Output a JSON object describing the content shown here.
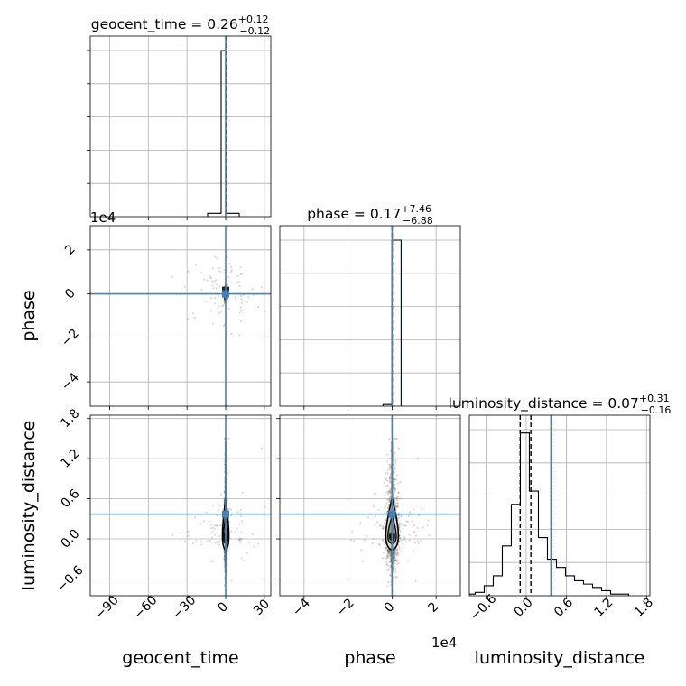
{
  "chart_data": {
    "type": "corner",
    "parameters": [
      "geocent_time",
      "phase",
      "luminosity_distance"
    ],
    "truth": {
      "geocent_time": 0,
      "phase": 0,
      "luminosity_distance": 0.37
    },
    "truth_color": "#4682b4",
    "grid": true,
    "diagonal_titles": [
      {
        "name": "geocent_time",
        "median": "0.26",
        "plus": "+0.12",
        "minus": "−0.12"
      },
      {
        "name": "phase",
        "median": "0.17",
        "plus": "+7.46",
        "minus": "−6.88"
      },
      {
        "name": "luminosity_distance",
        "median": "0.07",
        "plus": "+0.31",
        "minus": "−0.16"
      }
    ],
    "axes": {
      "geocent_time": {
        "range": [
          -105,
          35
        ],
        "ticks": [
          -90,
          -60,
          -30,
          0,
          30
        ],
        "tick_labels": [
          "−90",
          "−60",
          "−30",
          "0",
          "30"
        ],
        "label": "geocent_time"
      },
      "phase": {
        "range": [
          -51000,
          31000
        ],
        "ticks": [
          -40000,
          -20000,
          0,
          20000
        ],
        "tick_labels": [
          "−4",
          "−2",
          "0",
          "2"
        ],
        "y_tick_labels": [
          "−4",
          "−2",
          "0",
          "2"
        ],
        "offset_text": "1e4",
        "label": "phase"
      },
      "luminosity_distance": {
        "range": [
          -0.85,
          1.85
        ],
        "ticks": [
          -0.6,
          0,
          0.6,
          1.2,
          1.8
        ],
        "tick_labels": [
          "−0.6",
          "0.0",
          "0.6",
          "1.2",
          "1.8"
        ],
        "label": "luminosity_distance"
      }
    },
    "marginals": {
      "geocent_time": {
        "bin_width": 3.5,
        "bins": [
          [
            -12.25,
            0.02
          ],
          [
            -8.75,
            0.02
          ],
          [
            -5.25,
            0.02
          ],
          [
            -1.75,
            1.0
          ],
          [
            1.75,
            0.02
          ],
          [
            5.25,
            0.02
          ],
          [
            8.75,
            0.02
          ]
        ],
        "quantiles": [
          0.14,
          0.26,
          0.38
        ]
      },
      "phase": {
        "bin_width": 4100,
        "bins": [
          [
            -2050,
            0.01
          ],
          [
            2050,
            1.0
          ]
        ],
        "quantiles": [
          -6.71,
          0.17,
          7.63
        ]
      },
      "luminosity_distance": {
        "bin_width": 0.135,
        "bins": [
          [
            -0.83,
            0.01
          ],
          [
            -0.695,
            0.02
          ],
          [
            -0.56,
            0.06
          ],
          [
            -0.425,
            0.12
          ],
          [
            -0.29,
            0.3
          ],
          [
            -0.155,
            0.55
          ],
          [
            -0.02,
            0.98
          ],
          [
            0.115,
            0.63
          ],
          [
            0.25,
            0.35
          ],
          [
            0.385,
            0.22
          ],
          [
            0.52,
            0.17
          ],
          [
            0.655,
            0.12
          ],
          [
            0.79,
            0.09
          ],
          [
            0.925,
            0.07
          ],
          [
            1.06,
            0.05
          ],
          [
            1.195,
            0.03
          ],
          [
            1.33,
            0.01
          ],
          [
            1.465,
            0.01
          ]
        ],
        "quantiles": [
          -0.09,
          0.07,
          0.38
        ]
      }
    }
  }
}
